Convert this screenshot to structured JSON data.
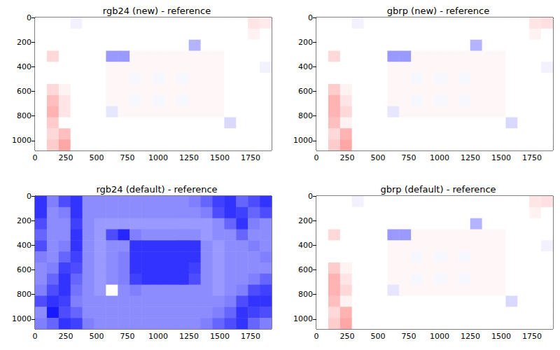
{
  "chart_data": [
    {
      "type": "heatmap",
      "title": "rgb24 (new) - reference",
      "xlim": [
        0,
        1920
      ],
      "xticks": [
        0,
        250,
        500,
        750,
        1000,
        1250,
        1500,
        1750
      ],
      "ylim": [
        1080,
        0
      ],
      "yticks": [
        0,
        200,
        400,
        600,
        800,
        1000
      ],
      "color_range": [
        -1,
        1
      ],
      "cells": [
        [
          0,
          0,
          0,
          -0.05,
          0,
          0,
          0,
          0,
          0,
          0,
          0,
          0,
          0,
          0,
          0,
          0,
          0,
          0,
          0.1,
          0.08
        ],
        [
          0,
          0,
          0,
          0,
          0,
          0,
          0,
          0,
          0,
          0,
          0,
          0,
          0,
          0,
          0,
          0,
          0,
          0,
          0.05,
          0
        ],
        [
          0,
          0,
          0,
          0,
          0,
          0,
          0,
          0,
          0,
          0,
          0,
          0,
          0,
          -0.3,
          0,
          0,
          0,
          0,
          0,
          0
        ],
        [
          0,
          0.15,
          0,
          0,
          0,
          0,
          -0.4,
          -0.4,
          0.03,
          0.03,
          0.03,
          0.03,
          0.03,
          0.03,
          0.03,
          0.03,
          0,
          0,
          0,
          0
        ],
        [
          0,
          0,
          0,
          0,
          0,
          0,
          0.03,
          0.03,
          0.03,
          0.03,
          0.03,
          0.03,
          0.03,
          0.03,
          0.03,
          0.03,
          0,
          0,
          0,
          -0.05
        ],
        [
          0,
          0,
          0,
          0,
          0,
          0,
          0.03,
          0.03,
          -0.03,
          0.03,
          -0.03,
          0.03,
          -0.03,
          0.03,
          0.03,
          0.03,
          0,
          0,
          0,
          0
        ],
        [
          0,
          0.15,
          0.05,
          0,
          0,
          0,
          0.03,
          0.03,
          0.03,
          0.03,
          0.03,
          0.03,
          0.03,
          0.03,
          0.03,
          0.03,
          0,
          0,
          0,
          0
        ],
        [
          0,
          0.25,
          0.1,
          0,
          0,
          0,
          0.03,
          0.03,
          -0.03,
          0.03,
          -0.03,
          0.03,
          -0.03,
          0.03,
          0.03,
          0.03,
          0,
          0,
          0,
          0
        ],
        [
          0,
          0.3,
          0.1,
          0,
          0,
          0,
          -0.1,
          0.03,
          0.03,
          0.03,
          0.03,
          0.03,
          0.03,
          0.03,
          0.03,
          0.03,
          0,
          0,
          0,
          0
        ],
        [
          0,
          0.2,
          0,
          0,
          0,
          0,
          0,
          0,
          0,
          0,
          0,
          0,
          0,
          0,
          0,
          0,
          -0.15,
          0,
          0,
          0
        ],
        [
          0,
          0.15,
          0.25,
          0,
          0,
          0,
          0,
          0,
          0,
          0,
          0,
          0,
          0,
          0,
          0,
          0,
          0,
          0,
          0,
          0
        ],
        [
          0,
          0.2,
          0.35,
          0,
          0,
          0,
          0,
          0,
          0,
          0,
          0,
          0,
          0,
          0,
          0,
          0,
          0,
          0,
          0,
          0
        ]
      ]
    },
    {
      "type": "heatmap",
      "title": "gbrp (new) - reference",
      "xlim": [
        0,
        1920
      ],
      "xticks": [
        0,
        250,
        500,
        750,
        1000,
        1250,
        1500,
        1750
      ],
      "ylim": [
        1080,
        0
      ],
      "yticks": [
        0,
        200,
        400,
        600,
        800,
        1000
      ],
      "color_range": [
        -1,
        1
      ],
      "cells": [
        [
          0,
          0,
          0,
          -0.05,
          0,
          0,
          0,
          0,
          0,
          0,
          0,
          0,
          0,
          0,
          0,
          0,
          0,
          0,
          0.1,
          0.12
        ],
        [
          0,
          0,
          0,
          0,
          0,
          0,
          0,
          0,
          0,
          0,
          0,
          0,
          0,
          0,
          0,
          0,
          0,
          0,
          0.05,
          0
        ],
        [
          0,
          0,
          0,
          0,
          0,
          0,
          0,
          0,
          0,
          0,
          0,
          0,
          0,
          -0.3,
          0,
          0,
          0,
          0,
          0,
          0
        ],
        [
          0,
          0.15,
          0,
          0,
          0,
          0,
          -0.4,
          -0.4,
          0.03,
          0.03,
          0.03,
          0.03,
          0.03,
          0.03,
          0.03,
          0.03,
          0,
          0,
          0,
          0
        ],
        [
          0,
          0,
          0,
          0,
          0,
          0,
          0.03,
          0.03,
          0.03,
          0.03,
          0.03,
          0.03,
          0.03,
          0.03,
          0.03,
          0.03,
          0,
          0,
          0,
          -0.05
        ],
        [
          0,
          0,
          0,
          0,
          0,
          0,
          0.03,
          0.03,
          -0.03,
          0.03,
          -0.03,
          0.03,
          -0.03,
          0.03,
          0.03,
          0.03,
          0,
          0,
          0,
          0
        ],
        [
          0,
          0.2,
          0.05,
          0,
          0,
          0,
          0.03,
          0.03,
          0.03,
          0.03,
          0.03,
          0.03,
          0.03,
          0.03,
          0.03,
          0.03,
          0,
          0,
          0,
          0
        ],
        [
          0,
          0.3,
          0.1,
          0,
          0,
          0,
          0.03,
          0.03,
          -0.03,
          0.03,
          -0.03,
          0.03,
          -0.03,
          0.03,
          0.03,
          0.03,
          0,
          0,
          0,
          0
        ],
        [
          0,
          0.3,
          0.15,
          0,
          0,
          0,
          -0.1,
          0.03,
          0.03,
          0.03,
          0.03,
          0.03,
          0.03,
          0.03,
          0.03,
          0.03,
          0,
          0,
          0,
          0
        ],
        [
          0,
          0.25,
          0.05,
          0,
          0,
          0,
          0,
          0,
          0,
          0,
          0,
          0,
          0,
          0,
          0,
          0,
          -0.15,
          0,
          0,
          0
        ],
        [
          0,
          0.15,
          0.3,
          0,
          0,
          0,
          0,
          0,
          0,
          0,
          0,
          0,
          0,
          0,
          0,
          0,
          0,
          0,
          0,
          0
        ],
        [
          0,
          0.2,
          0.35,
          0,
          0,
          0,
          0,
          0,
          0,
          0,
          0,
          0,
          0,
          0,
          0,
          0,
          0,
          0,
          0,
          0
        ]
      ]
    },
    {
      "type": "heatmap",
      "title": "rgb24 (default) - reference",
      "xlim": [
        0,
        1920
      ],
      "xticks": [
        0,
        250,
        500,
        750,
        1000,
        1250,
        1500,
        1750
      ],
      "ylim": [
        1080,
        0
      ],
      "yticks": [
        0,
        200,
        400,
        600,
        800,
        1000
      ],
      "color_range": [
        -1,
        1
      ],
      "cells": [
        [
          -0.8,
          -0.5,
          -0.7,
          -0.8,
          -0.45,
          -0.45,
          -0.45,
          -0.45,
          -0.45,
          -0.45,
          -0.45,
          -0.45,
          -0.45,
          -0.5,
          -0.6,
          -0.75,
          -0.8,
          -0.6,
          -0.7,
          -0.8
        ],
        [
          -0.8,
          -0.45,
          -0.5,
          -0.8,
          -0.45,
          -0.45,
          -0.45,
          -0.45,
          -0.45,
          -0.45,
          -0.45,
          -0.45,
          -0.45,
          -0.45,
          -0.5,
          -0.7,
          -0.8,
          -0.75,
          -0.6,
          -0.7
        ],
        [
          -0.7,
          -0.45,
          -0.45,
          -0.75,
          -0.45,
          -0.4,
          -0.4,
          -0.4,
          -0.4,
          -0.4,
          -0.4,
          -0.4,
          -0.4,
          -0.4,
          -0.4,
          -0.45,
          -0.6,
          -0.8,
          -0.5,
          -0.45
        ],
        [
          -0.6,
          -0.45,
          -0.45,
          -0.8,
          -0.45,
          -0.4,
          -0.7,
          -0.85,
          -0.5,
          -0.45,
          -0.45,
          -0.45,
          -0.45,
          -0.45,
          -0.4,
          -0.45,
          -0.45,
          -0.6,
          -0.45,
          -0.45
        ],
        [
          -0.7,
          -0.45,
          -0.5,
          -0.8,
          -0.45,
          -0.4,
          -0.45,
          -0.45,
          -0.8,
          -0.8,
          -0.8,
          -0.8,
          -0.8,
          -0.8,
          -0.45,
          -0.4,
          -0.45,
          -0.45,
          -0.5,
          -0.45
        ],
        [
          -0.5,
          -0.45,
          -0.6,
          -0.75,
          -0.45,
          -0.4,
          -0.45,
          -0.5,
          -0.8,
          -0.8,
          -0.8,
          -0.8,
          -0.8,
          -0.8,
          -0.45,
          -0.4,
          -0.45,
          -0.45,
          -0.45,
          -0.5
        ],
        [
          -0.45,
          -0.5,
          -0.75,
          -0.7,
          -0.45,
          -0.4,
          -0.45,
          -0.5,
          -0.8,
          -0.8,
          -0.8,
          -0.8,
          -0.8,
          -0.75,
          -0.45,
          -0.4,
          -0.45,
          -0.45,
          -0.45,
          -0.45
        ],
        [
          -0.45,
          -0.6,
          -0.8,
          -0.6,
          -0.45,
          -0.4,
          -0.45,
          -0.5,
          -0.75,
          -0.8,
          -0.8,
          -0.8,
          -0.8,
          -0.7,
          -0.45,
          -0.4,
          -0.45,
          -0.45,
          -0.5,
          -0.6
        ],
        [
          -0.5,
          -0.7,
          -0.8,
          -0.55,
          -0.45,
          -0.4,
          0,
          -0.45,
          -0.5,
          -0.45,
          -0.45,
          -0.45,
          -0.45,
          -0.45,
          -0.45,
          -0.4,
          -0.45,
          -0.5,
          -0.7,
          -0.75
        ],
        [
          -0.7,
          -0.8,
          -0.75,
          -0.5,
          -0.45,
          -0.45,
          -0.45,
          -0.45,
          -0.45,
          -0.45,
          -0.45,
          -0.45,
          -0.45,
          -0.45,
          -0.45,
          -0.45,
          -0.5,
          -0.7,
          -0.8,
          -0.8
        ],
        [
          -0.45,
          -0.9,
          -0.7,
          -0.6,
          -0.45,
          -0.45,
          -0.45,
          -0.45,
          -0.45,
          -0.45,
          -0.45,
          -0.45,
          -0.45,
          -0.45,
          -0.45,
          -0.5,
          -0.6,
          -0.8,
          -0.75,
          -0.7
        ],
        [
          -0.5,
          -0.6,
          -0.8,
          -0.75,
          -0.5,
          -0.45,
          -0.45,
          -0.45,
          -0.45,
          -0.45,
          -0.45,
          -0.45,
          -0.45,
          -0.45,
          -0.5,
          -0.6,
          -0.7,
          -0.8,
          -0.6,
          -0.5
        ]
      ]
    },
    {
      "type": "heatmap",
      "title": "gbrp (default) - reference",
      "xlim": [
        0,
        1920
      ],
      "xticks": [
        0,
        250,
        500,
        750,
        1000,
        1250,
        1500,
        1750
      ],
      "ylim": [
        1080,
        0
      ],
      "yticks": [
        0,
        200,
        400,
        600,
        800,
        1000
      ],
      "color_range": [
        -1,
        1
      ],
      "cells": [
        [
          0,
          0,
          0,
          -0.05,
          0,
          0,
          0,
          0,
          0,
          0,
          0,
          0,
          0,
          0,
          0,
          0,
          0,
          0,
          0.1,
          0.12
        ],
        [
          0,
          0,
          0,
          0,
          0,
          0,
          0,
          0,
          0,
          0,
          0,
          0,
          0,
          0,
          0,
          0,
          0,
          0,
          0.05,
          0
        ],
        [
          0,
          0,
          0,
          0,
          0,
          0,
          0,
          0,
          0,
          0,
          0,
          0,
          0,
          -0.3,
          0,
          0,
          0,
          0,
          0,
          0
        ],
        [
          0,
          0.15,
          0,
          0,
          0,
          0,
          -0.4,
          -0.4,
          0.03,
          0.03,
          0.03,
          0.03,
          0.03,
          0.03,
          0.03,
          0.03,
          0,
          0,
          0,
          0
        ],
        [
          0,
          0,
          0,
          0,
          0,
          0,
          0.03,
          0.03,
          0.03,
          0.03,
          0.03,
          0.03,
          0.03,
          0.03,
          0.03,
          0.03,
          0,
          0,
          0,
          -0.05
        ],
        [
          0,
          0,
          0,
          0,
          0,
          0,
          0.03,
          0.03,
          -0.03,
          0.03,
          -0.03,
          0.03,
          -0.03,
          0.03,
          0.03,
          0.03,
          0,
          0,
          0,
          0
        ],
        [
          0,
          0.2,
          0.05,
          0,
          0,
          0,
          0.03,
          0.03,
          0.03,
          0.03,
          0.03,
          0.03,
          0.03,
          0.03,
          0.03,
          0.03,
          0,
          0,
          0,
          0
        ],
        [
          0,
          0.3,
          0.1,
          0,
          0,
          0,
          0.03,
          0.03,
          -0.03,
          0.03,
          -0.03,
          0.03,
          -0.03,
          0.03,
          0.03,
          0.03,
          0,
          0,
          0,
          0
        ],
        [
          0,
          0.3,
          0.15,
          0,
          0,
          0,
          -0.1,
          0.03,
          0.03,
          0.03,
          0.03,
          0.03,
          0.03,
          0.03,
          0.03,
          0.03,
          0,
          0,
          0,
          0
        ],
        [
          0,
          0.25,
          0.05,
          0,
          0,
          0,
          0,
          0,
          0,
          0,
          0,
          0,
          0,
          0,
          0,
          0,
          -0.15,
          0,
          0,
          0
        ],
        [
          0,
          0.15,
          0.3,
          0,
          0,
          0,
          0,
          0,
          0,
          0,
          0,
          0,
          0,
          0,
          0,
          0,
          0,
          0,
          0,
          0
        ],
        [
          0,
          0.2,
          0.35,
          0,
          0,
          0,
          0,
          0,
          0,
          0,
          0,
          0,
          0,
          0,
          0,
          0,
          0,
          0,
          0,
          0
        ]
      ]
    }
  ]
}
